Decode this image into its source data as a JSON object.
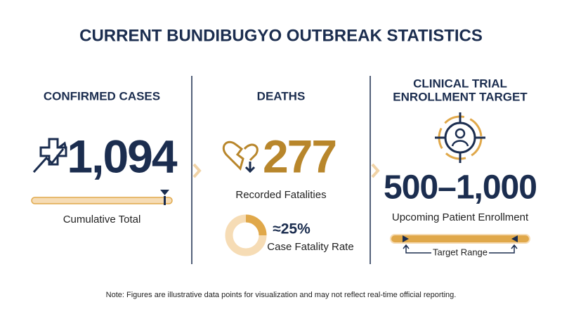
{
  "title": "CURRENT BUNDIBUGYO OUTBREAK STATISTICS",
  "cases": {
    "heading": "CONFIRMED CASES",
    "value": "1,094",
    "caption": "Cumulative Total"
  },
  "deaths": {
    "heading": "DEATHS",
    "value": "277",
    "caption": "Recorded Fatalities",
    "fatality_rate": {
      "value": 25,
      "label": "≈25%"
    },
    "fatality_caption": "Case Fatality Rate"
  },
  "trial": {
    "heading": [
      "CLINICAL TRIAL",
      "ENROLLMENT TARGET"
    ],
    "value": "500–1,000",
    "caption": "Upcoming Patient Enrollment",
    "range_label": "Target Range"
  },
  "note": "Note: Figures are illustrative data points for visualization and may not reflect real-time official reporting."
}
